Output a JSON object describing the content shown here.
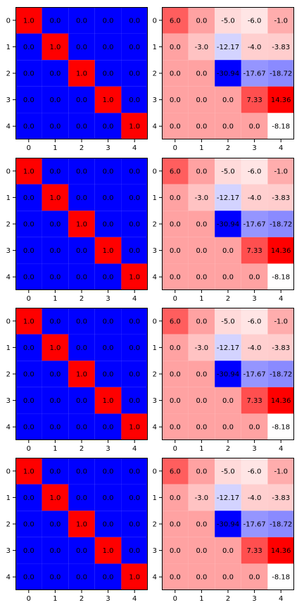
{
  "chart_data": [
    {
      "type": "heatmap",
      "title": "",
      "xlabel": "",
      "ylabel": "",
      "x_tick_labels": [
        "0",
        "1",
        "2",
        "3",
        "4"
      ],
      "y_tick_labels": [
        "0",
        "1",
        "2",
        "3",
        "4"
      ],
      "colormap": "bwr",
      "values": [
        [
          1.0,
          0.0,
          0.0,
          0.0,
          0.0
        ],
        [
          0.0,
          1.0,
          0.0,
          0.0,
          0.0
        ],
        [
          0.0,
          0.0,
          1.0,
          0.0,
          0.0
        ],
        [
          0.0,
          0.0,
          0.0,
          1.0,
          0.0
        ],
        [
          0.0,
          0.0,
          0.0,
          0.0,
          1.0
        ]
      ],
      "labels": [
        [
          "1.0",
          "0.0",
          "0.0",
          "0.0",
          "0.0"
        ],
        [
          "0.0",
          "1.0",
          "0.0",
          "0.0",
          "0.0"
        ],
        [
          "0.0",
          "0.0",
          "1.0",
          "0.0",
          "0.0"
        ],
        [
          "0.0",
          "0.0",
          "0.0",
          "1.0",
          "0.0"
        ],
        [
          "0.0",
          "0.0",
          "0.0",
          "0.0",
          "1.0"
        ]
      ]
    },
    {
      "type": "heatmap",
      "title": "",
      "xlabel": "",
      "ylabel": "",
      "x_tick_labels": [
        "0",
        "1",
        "2",
        "3",
        "4"
      ],
      "y_tick_labels": [
        "0",
        "1",
        "2",
        "3",
        "4"
      ],
      "colormap": "bwr",
      "values": [
        [
          6.0,
          0.0,
          -5.0,
          -6.0,
          -1.0
        ],
        [
          0.0,
          -3.0,
          -12.17,
          -4.0,
          -3.83
        ],
        [
          0.0,
          0.0,
          -30.94,
          -17.67,
          -18.72
        ],
        [
          0.0,
          0.0,
          0.0,
          7.33,
          14.36
        ],
        [
          0.0,
          0.0,
          0.0,
          0.0,
          -8.18
        ]
      ],
      "labels": [
        [
          "6.0",
          "0.0",
          "-5.0",
          "-6.0",
          "-1.0"
        ],
        [
          "0.0",
          "-3.0",
          "-12.17",
          "-4.0",
          "-3.83"
        ],
        [
          "0.0",
          "0.0",
          "-30.94",
          "-17.67",
          "-18.72"
        ],
        [
          "0.0",
          "0.0",
          "0.0",
          "7.33",
          "14.36"
        ],
        [
          "0.0",
          "0.0",
          "0.0",
          "0.0",
          "-8.18"
        ]
      ]
    },
    {
      "type": "heatmap",
      "title": "",
      "xlabel": "",
      "ylabel": "",
      "x_tick_labels": [
        "0",
        "1",
        "2",
        "3",
        "4"
      ],
      "y_tick_labels": [
        "0",
        "1",
        "2",
        "3",
        "4"
      ],
      "colormap": "bwr",
      "values": [
        [
          1.0,
          0.0,
          0.0,
          0.0,
          0.0
        ],
        [
          0.0,
          1.0,
          0.0,
          0.0,
          0.0
        ],
        [
          0.0,
          0.0,
          1.0,
          0.0,
          0.0
        ],
        [
          0.0,
          0.0,
          0.0,
          1.0,
          0.0
        ],
        [
          0.0,
          0.0,
          0.0,
          0.0,
          1.0
        ]
      ],
      "labels": [
        [
          "1.0",
          "0.0",
          "0.0",
          "0.0",
          "0.0"
        ],
        [
          "0.0",
          "1.0",
          "0.0",
          "0.0",
          "0.0"
        ],
        [
          "0.0",
          "0.0",
          "1.0",
          "0.0",
          "0.0"
        ],
        [
          "0.0",
          "0.0",
          "0.0",
          "1.0",
          "0.0"
        ],
        [
          "0.0",
          "0.0",
          "0.0",
          "0.0",
          "1.0"
        ]
      ]
    },
    {
      "type": "heatmap",
      "title": "",
      "xlabel": "",
      "ylabel": "",
      "x_tick_labels": [
        "0",
        "1",
        "2",
        "3",
        "4"
      ],
      "y_tick_labels": [
        "0",
        "1",
        "2",
        "3",
        "4"
      ],
      "colormap": "bwr",
      "values": [
        [
          6.0,
          0.0,
          -5.0,
          -6.0,
          -1.0
        ],
        [
          0.0,
          -3.0,
          -12.17,
          -4.0,
          -3.83
        ],
        [
          0.0,
          0.0,
          -30.94,
          -17.67,
          -18.72
        ],
        [
          0.0,
          0.0,
          0.0,
          7.33,
          14.36
        ],
        [
          0.0,
          0.0,
          0.0,
          0.0,
          -8.18
        ]
      ],
      "labels": [
        [
          "6.0",
          "0.0",
          "-5.0",
          "-6.0",
          "-1.0"
        ],
        [
          "0.0",
          "-3.0",
          "-12.17",
          "-4.0",
          "-3.83"
        ],
        [
          "0.0",
          "0.0",
          "-30.94",
          "-17.67",
          "-18.72"
        ],
        [
          "0.0",
          "0.0",
          "0.0",
          "7.33",
          "14.36"
        ],
        [
          "0.0",
          "0.0",
          "0.0",
          "0.0",
          "-8.18"
        ]
      ]
    },
    {
      "type": "heatmap",
      "title": "",
      "xlabel": "",
      "ylabel": "",
      "x_tick_labels": [
        "0",
        "1",
        "2",
        "3",
        "4"
      ],
      "y_tick_labels": [
        "0",
        "1",
        "2",
        "3",
        "4"
      ],
      "colormap": "bwr",
      "values": [
        [
          1.0,
          0.0,
          0.0,
          0.0,
          0.0
        ],
        [
          0.0,
          1.0,
          0.0,
          0.0,
          0.0
        ],
        [
          0.0,
          0.0,
          1.0,
          0.0,
          0.0
        ],
        [
          0.0,
          0.0,
          0.0,
          1.0,
          0.0
        ],
        [
          0.0,
          0.0,
          0.0,
          0.0,
          1.0
        ]
      ],
      "labels": [
        [
          "1.0",
          "0.0",
          "0.0",
          "0.0",
          "0.0"
        ],
        [
          "0.0",
          "1.0",
          "0.0",
          "0.0",
          "0.0"
        ],
        [
          "0.0",
          "0.0",
          "1.0",
          "0.0",
          "0.0"
        ],
        [
          "0.0",
          "0.0",
          "0.0",
          "1.0",
          "0.0"
        ],
        [
          "0.0",
          "0.0",
          "0.0",
          "0.0",
          "1.0"
        ]
      ]
    },
    {
      "type": "heatmap",
      "title": "",
      "xlabel": "",
      "ylabel": "",
      "x_tick_labels": [
        "0",
        "1",
        "2",
        "3",
        "4"
      ],
      "y_tick_labels": [
        "0",
        "1",
        "2",
        "3",
        "4"
      ],
      "colormap": "bwr",
      "values": [
        [
          6.0,
          0.0,
          -5.0,
          -6.0,
          -1.0
        ],
        [
          0.0,
          -3.0,
          -12.17,
          -4.0,
          -3.83
        ],
        [
          0.0,
          0.0,
          -30.94,
          -17.67,
          -18.72
        ],
        [
          0.0,
          0.0,
          0.0,
          7.33,
          14.36
        ],
        [
          0.0,
          0.0,
          0.0,
          0.0,
          -8.18
        ]
      ],
      "labels": [
        [
          "6.0",
          "0.0",
          "-5.0",
          "-6.0",
          "-1.0"
        ],
        [
          "0.0",
          "-3.0",
          "-12.17",
          "-4.0",
          "-3.83"
        ],
        [
          "0.0",
          "0.0",
          "-30.94",
          "-17.67",
          "-18.72"
        ],
        [
          "0.0",
          "0.0",
          "0.0",
          "7.33",
          "14.36"
        ],
        [
          "0.0",
          "0.0",
          "0.0",
          "0.0",
          "-8.18"
        ]
      ]
    },
    {
      "type": "heatmap",
      "title": "",
      "xlabel": "",
      "ylabel": "",
      "x_tick_labels": [
        "0",
        "1",
        "2",
        "3",
        "4"
      ],
      "y_tick_labels": [
        "0",
        "1",
        "2",
        "3",
        "4"
      ],
      "colormap": "bwr",
      "values": [
        [
          1.0,
          0.0,
          0.0,
          0.0,
          0.0
        ],
        [
          0.0,
          1.0,
          0.0,
          0.0,
          0.0
        ],
        [
          0.0,
          0.0,
          1.0,
          0.0,
          0.0
        ],
        [
          0.0,
          0.0,
          0.0,
          1.0,
          0.0
        ],
        [
          0.0,
          0.0,
          0.0,
          0.0,
          1.0
        ]
      ],
      "labels": [
        [
          "1.0",
          "0.0",
          "0.0",
          "0.0",
          "0.0"
        ],
        [
          "0.0",
          "1.0",
          "0.0",
          "0.0",
          "0.0"
        ],
        [
          "0.0",
          "0.0",
          "1.0",
          "0.0",
          "0.0"
        ],
        [
          "0.0",
          "0.0",
          "0.0",
          "1.0",
          "0.0"
        ],
        [
          "0.0",
          "0.0",
          "0.0",
          "0.0",
          "1.0"
        ]
      ]
    },
    {
      "type": "heatmap",
      "title": "",
      "xlabel": "",
      "ylabel": "",
      "x_tick_labels": [
        "0",
        "1",
        "2",
        "3",
        "4"
      ],
      "y_tick_labels": [
        "0",
        "1",
        "2",
        "3",
        "4"
      ],
      "colormap": "bwr",
      "values": [
        [
          6.0,
          0.0,
          -5.0,
          -6.0,
          -1.0
        ],
        [
          0.0,
          -3.0,
          -12.17,
          -4.0,
          -3.83
        ],
        [
          0.0,
          0.0,
          -30.94,
          -17.67,
          -18.72
        ],
        [
          0.0,
          0.0,
          0.0,
          7.33,
          14.36
        ],
        [
          0.0,
          0.0,
          0.0,
          0.0,
          -8.18
        ]
      ],
      "labels": [
        [
          "6.0",
          "0.0",
          "-5.0",
          "-6.0",
          "-1.0"
        ],
        [
          "0.0",
          "-3.0",
          "-12.17",
          "-4.0",
          "-3.83"
        ],
        [
          "0.0",
          "0.0",
          "-30.94",
          "-17.67",
          "-18.72"
        ],
        [
          "0.0",
          "0.0",
          "0.0",
          "7.33",
          "14.36"
        ],
        [
          "0.0",
          "0.0",
          "0.0",
          "0.0",
          "-8.18"
        ]
      ]
    }
  ]
}
